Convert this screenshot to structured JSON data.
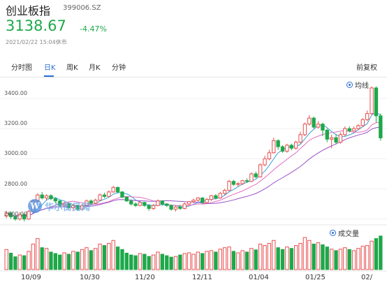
{
  "header": {
    "name": "创业板指",
    "code": "399006.SZ",
    "price": "3138.67",
    "change_pct": "-4.47%",
    "timestamp": "2021/02/22 15:04休市",
    "down_color": "#1ea84a",
    "up_color": "#e94f4f"
  },
  "tabs": [
    {
      "label": "分时图",
      "active": false
    },
    {
      "label": "日K",
      "active": true
    },
    {
      "label": "周K",
      "active": false
    },
    {
      "label": "月K",
      "active": false
    },
    {
      "label": "分钟",
      "active": false
    }
  ],
  "adjust_label": "前复权",
  "legend": {
    "ma": "均线",
    "volume": "成交量"
  },
  "watermark": {
    "logo": "W",
    "text": "华尔街见闻"
  },
  "chart_data": {
    "type": "candlestick",
    "y_ticks": [
      "3400.00",
      "3200.00",
      "3000.00",
      "2800.00",
      "2600.00"
    ],
    "ylim": [
      2580,
      3530
    ],
    "x_ticks": [
      "10/09",
      "10/30",
      "11/20",
      "12/11",
      "01/04",
      "01/25",
      "02/"
    ],
    "last_close": 3138.67,
    "candles": [
      [
        2620,
        2640,
        2655,
        2605
      ],
      [
        2640,
        2615,
        2650,
        2600
      ],
      [
        2615,
        2600,
        2630,
        2590
      ],
      [
        2600,
        2630,
        2645,
        2590
      ],
      [
        2630,
        2600,
        2640,
        2585
      ],
      [
        2600,
        2650,
        2660,
        2595
      ],
      [
        2650,
        2720,
        2730,
        2645
      ],
      [
        2720,
        2760,
        2770,
        2710
      ],
      [
        2760,
        2740,
        2780,
        2730
      ],
      [
        2740,
        2755,
        2765,
        2725
      ],
      [
        2755,
        2735,
        2765,
        2725
      ],
      [
        2735,
        2720,
        2745,
        2705
      ],
      [
        2720,
        2690,
        2725,
        2680
      ],
      [
        2690,
        2700,
        2715,
        2685
      ],
      [
        2700,
        2675,
        2710,
        2665
      ],
      [
        2675,
        2690,
        2700,
        2660
      ],
      [
        2690,
        2665,
        2695,
        2655
      ],
      [
        2665,
        2690,
        2700,
        2660
      ],
      [
        2690,
        2720,
        2730,
        2685
      ],
      [
        2720,
        2705,
        2730,
        2695
      ],
      [
        2705,
        2725,
        2735,
        2700
      ],
      [
        2725,
        2760,
        2770,
        2720
      ],
      [
        2760,
        2750,
        2775,
        2740
      ],
      [
        2750,
        2780,
        2790,
        2745
      ],
      [
        2780,
        2810,
        2820,
        2775
      ],
      [
        2810,
        2780,
        2815,
        2770
      ],
      [
        2780,
        2745,
        2785,
        2740
      ],
      [
        2745,
        2720,
        2750,
        2715
      ],
      [
        2720,
        2700,
        2730,
        2690
      ],
      [
        2700,
        2690,
        2710,
        2680
      ],
      [
        2690,
        2710,
        2720,
        2685
      ],
      [
        2710,
        2690,
        2715,
        2680
      ],
      [
        2690,
        2670,
        2700,
        2655
      ],
      [
        2670,
        2690,
        2700,
        2660
      ],
      [
        2690,
        2720,
        2730,
        2685
      ],
      [
        2720,
        2700,
        2725,
        2690
      ],
      [
        2700,
        2690,
        2705,
        2680
      ],
      [
        2690,
        2665,
        2695,
        2655
      ],
      [
        2665,
        2680,
        2690,
        2650
      ],
      [
        2680,
        2670,
        2695,
        2660
      ],
      [
        2670,
        2700,
        2710,
        2665
      ],
      [
        2700,
        2715,
        2720,
        2690
      ],
      [
        2715,
        2725,
        2735,
        2705
      ],
      [
        2725,
        2740,
        2745,
        2715
      ],
      [
        2740,
        2710,
        2745,
        2705
      ],
      [
        2710,
        2730,
        2740,
        2700
      ],
      [
        2730,
        2755,
        2760,
        2720
      ],
      [
        2755,
        2740,
        2765,
        2730
      ],
      [
        2740,
        2770,
        2780,
        2735
      ],
      [
        2770,
        2790,
        2800,
        2760
      ],
      [
        2790,
        2850,
        2860,
        2785
      ],
      [
        2850,
        2830,
        2860,
        2820
      ],
      [
        2830,
        2835,
        2845,
        2815
      ],
      [
        2835,
        2855,
        2860,
        2825
      ],
      [
        2855,
        2850,
        2870,
        2840
      ],
      [
        2850,
        2900,
        2910,
        2845
      ],
      [
        2900,
        2880,
        2915,
        2870
      ],
      [
        2880,
        2960,
        2970,
        2875
      ],
      [
        2960,
        3000,
        3020,
        2950
      ],
      [
        3000,
        3040,
        3060,
        2990
      ],
      [
        3040,
        3120,
        3140,
        3035
      ],
      [
        3120,
        3080,
        3130,
        3060
      ],
      [
        3080,
        3050,
        3090,
        3040
      ],
      [
        3050,
        3090,
        3100,
        3040
      ],
      [
        3090,
        3070,
        3100,
        3055
      ],
      [
        3070,
        3110,
        3120,
        3060
      ],
      [
        3110,
        3160,
        3180,
        3100
      ],
      [
        3160,
        3230,
        3240,
        3150
      ],
      [
        3230,
        3270,
        3290,
        3220
      ],
      [
        3270,
        3210,
        3280,
        3200
      ],
      [
        3210,
        3230,
        3250,
        3200
      ],
      [
        3230,
        3190,
        3240,
        3150
      ],
      [
        3190,
        3130,
        3200,
        3110
      ],
      [
        3130,
        3140,
        3160,
        3070
      ],
      [
        3140,
        3110,
        3165,
        3095
      ],
      [
        3110,
        3160,
        3175,
        3100
      ],
      [
        3160,
        3200,
        3215,
        3150
      ],
      [
        3200,
        3185,
        3215,
        3175
      ],
      [
        3185,
        3200,
        3215,
        3180
      ],
      [
        3200,
        3220,
        3230,
        3190
      ],
      [
        3220,
        3260,
        3270,
        3210
      ],
      [
        3260,
        3300,
        3320,
        3250
      ],
      [
        3300,
        3470,
        3480,
        3290
      ],
      [
        3470,
        3285,
        3480,
        3240
      ],
      [
        3285,
        3138.67,
        3300,
        3120
      ]
    ],
    "ma_lines": [
      {
        "name": "MA5",
        "color": "#3aa0d8"
      },
      {
        "name": "MA10",
        "color": "#e070c0"
      },
      {
        "name": "MA20",
        "color": "#9a50c8"
      }
    ],
    "volumes": [
      55,
      45,
      35,
      40,
      38,
      50,
      70,
      85,
      60,
      58,
      48,
      44,
      40,
      46,
      42,
      50,
      48,
      55,
      60,
      52,
      58,
      70,
      66,
      72,
      80,
      62,
      55,
      45,
      40,
      38,
      44,
      42,
      36,
      40,
      48,
      42,
      38,
      34,
      36,
      40,
      44,
      46,
      42,
      48,
      44,
      50,
      52,
      48,
      56,
      60,
      62,
      50,
      46,
      52,
      48,
      58,
      54,
      70,
      66,
      72,
      80,
      60,
      55,
      62,
      58,
      66,
      72,
      88,
      80,
      70,
      74,
      68,
      62,
      56,
      52,
      56,
      60,
      55,
      52,
      58,
      64,
      66,
      78,
      85,
      92
    ]
  }
}
